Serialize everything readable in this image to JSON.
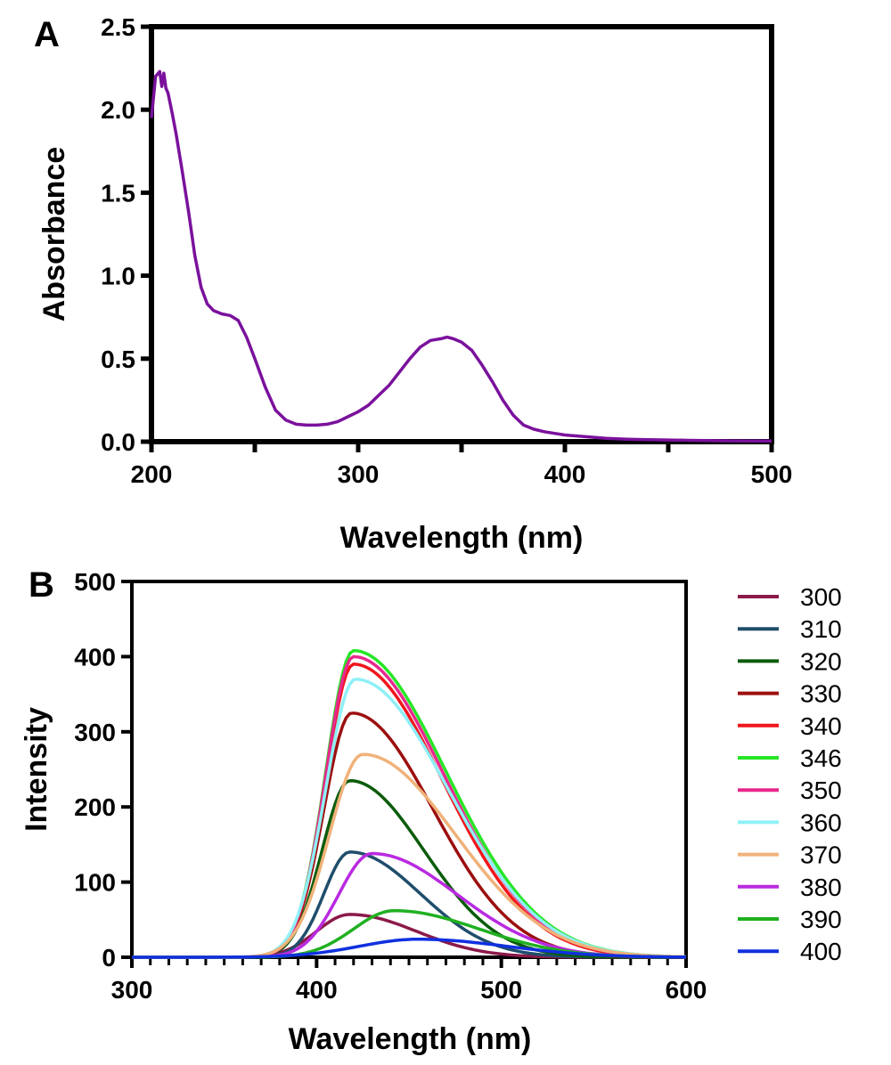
{
  "chart_data": [
    {
      "panel": "A",
      "type": "line",
      "xlabel": "Wavelength (nm)",
      "ylabel": "Absorbance",
      "xlim": [
        200,
        500
      ],
      "ylim": [
        0,
        2.5
      ],
      "xticks": [
        "200",
        "300",
        "400",
        "500"
      ],
      "yticks": [
        "0.0",
        "0.5",
        "1.0",
        "1.5",
        "2.0",
        "2.5"
      ],
      "colors": {
        "line": "#7a119c"
      },
      "series": [
        {
          "x": [
            200,
            202,
            204,
            205,
            206,
            207,
            208,
            210,
            212,
            215,
            218,
            221,
            224,
            227,
            230,
            234,
            238,
            242,
            246,
            250,
            255,
            260,
            265,
            270,
            275,
            280,
            285,
            290,
            295,
            300,
            305,
            310,
            315,
            320,
            325,
            330,
            335,
            340,
            343,
            346,
            350,
            355,
            360,
            365,
            370,
            375,
            380,
            385,
            390,
            395,
            400,
            410,
            420,
            430,
            440,
            450,
            460,
            480,
            500
          ],
          "y": [
            1.95,
            2.2,
            2.23,
            2.14,
            2.22,
            2.13,
            2.1,
            1.98,
            1.85,
            1.62,
            1.38,
            1.12,
            0.93,
            0.83,
            0.79,
            0.77,
            0.76,
            0.73,
            0.63,
            0.5,
            0.33,
            0.19,
            0.13,
            0.105,
            0.1,
            0.1,
            0.105,
            0.12,
            0.15,
            0.18,
            0.22,
            0.28,
            0.34,
            0.42,
            0.5,
            0.57,
            0.61,
            0.62,
            0.63,
            0.62,
            0.6,
            0.55,
            0.46,
            0.36,
            0.25,
            0.16,
            0.1,
            0.075,
            0.06,
            0.05,
            0.04,
            0.03,
            0.02,
            0.015,
            0.012,
            0.01,
            0.008,
            0.005,
            0.004
          ]
        }
      ]
    },
    {
      "panel": "B",
      "type": "line",
      "xlabel": "Wavelength (nm)",
      "ylabel": "Intensity",
      "xlim": [
        300,
        600
      ],
      "ylim": [
        0,
        500
      ],
      "xticks": [
        "300",
        "400",
        "500",
        "600"
      ],
      "yticks": [
        "0",
        "100",
        "200",
        "300",
        "400",
        "500"
      ],
      "legend": "right",
      "series": [
        {
          "name": "300",
          "color": "#8b1a4a",
          "peak": 57,
          "center": 418,
          "wl": 18,
          "wr": 36
        },
        {
          "name": "310",
          "color": "#1f4e6b",
          "peak": 140,
          "center": 418,
          "wl": 14,
          "wr": 38
        },
        {
          "name": "320",
          "color": "#0b5c0b",
          "peak": 235,
          "center": 418,
          "wl": 15,
          "wr": 40
        },
        {
          "name": "330",
          "color": "#9c0f0f",
          "peak": 325,
          "center": 419,
          "wl": 15,
          "wr": 44
        },
        {
          "name": "340",
          "color": "#f0161c",
          "peak": 390,
          "center": 420,
          "wl": 15,
          "wr": 48
        },
        {
          "name": "346",
          "color": "#27e627",
          "peak": 408,
          "center": 420,
          "wl": 15,
          "wr": 50
        },
        {
          "name": "350",
          "color": "#e8288c",
          "peak": 400,
          "center": 420,
          "wl": 15,
          "wr": 49
        },
        {
          "name": "360",
          "color": "#8ff0f7",
          "peak": 370,
          "center": 421,
          "wl": 16,
          "wr": 50
        },
        {
          "name": "370",
          "color": "#f0b27a",
          "peak": 270,
          "center": 425,
          "wl": 18,
          "wr": 50
        },
        {
          "name": "380",
          "color": "#b92ae0",
          "peak": 138,
          "center": 430,
          "wl": 18,
          "wr": 46
        },
        {
          "name": "390",
          "color": "#20b020",
          "peak": 62,
          "center": 442,
          "wl": 22,
          "wr": 46
        },
        {
          "name": "400",
          "color": "#1030e0",
          "peak": 24,
          "center": 455,
          "wl": 32,
          "wr": 48
        }
      ]
    }
  ],
  "panel_labels": {
    "a": "A",
    "b": "B"
  }
}
